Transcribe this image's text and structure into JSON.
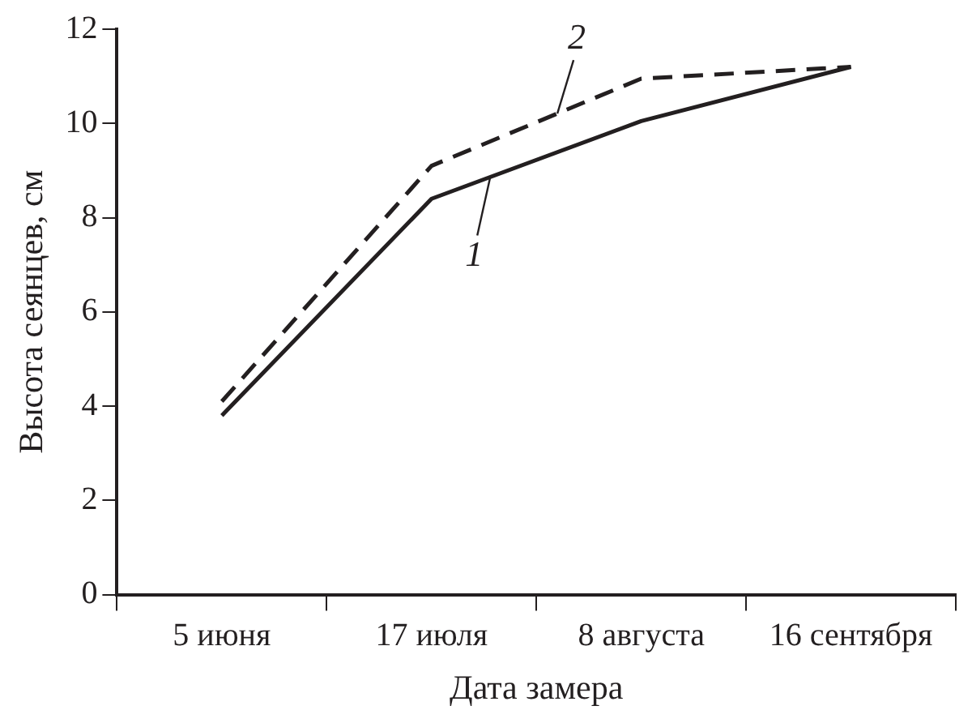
{
  "chart_data": {
    "type": "line",
    "xlabel": "Дата замера",
    "ylabel": "Высота сеянцев, см",
    "categories": [
      "5 июня",
      "17 июля",
      "8 августа",
      "16 сентября"
    ],
    "series": [
      {
        "name": "1",
        "color": "#231f20",
        "values": [
          3.8,
          8.4,
          10.05,
          11.2
        ],
        "line_style": "solid"
      },
      {
        "name": "2",
        "color": "#231f20",
        "values": [
          4.1,
          9.1,
          10.95,
          11.2
        ],
        "line_style": "dashed"
      }
    ],
    "ylim": [
      0,
      12
    ],
    "yticks": [
      0,
      2,
      4,
      6,
      8,
      10,
      12
    ],
    "grid": false,
    "legend": "center",
    "marker": "none"
  }
}
